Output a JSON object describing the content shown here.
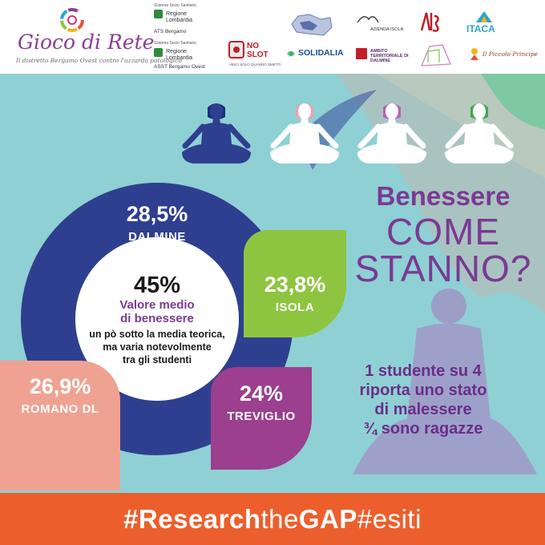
{
  "header": {
    "logo_title": "Gioco di Rete",
    "logo_subtitle": "Il distretto Bergamo Ovest contro l'azzardo patologico",
    "partners": {
      "ats_caption": "Sistema Socio Sanitario",
      "ats_name": "Regione Lombardia",
      "ats_sub": "ATS Bergamo",
      "asst_caption": "Sistema Socio Sanitario",
      "asst_name": "Regione Lombardia",
      "asst_sub": "ASST Bergamo Ovest",
      "noslot_label": "NO SLOT",
      "noslot_tagline": "VINCI SOLO QUANDO SMETTI",
      "solidalia_label": "SOLIDALIA",
      "azienda_isola": "AZIENDA ISOLA",
      "ambito_dalmine": "AMBITO TERRITORIALE DI DALMINE",
      "itaca": "ITACA",
      "piccolo_principe": "Il Piccolo Principe"
    }
  },
  "main": {
    "title_line1": "Benessere",
    "title_line2": "COME",
    "title_line3": "STANNO?",
    "center_pct": "45%",
    "center_label_1": "Valore medio",
    "center_label_2": "di benessere",
    "center_note_1": "un pò sotto la media teorica,",
    "center_note_2": "ma varia notevolmente",
    "center_note_3": "tra gli studenti",
    "stats": {
      "dalmine": {
        "pct": "28,5%",
        "name": "DALMINE",
        "color": "#2f3f8f"
      },
      "isola": {
        "pct": "23,8%",
        "name": "ISOLA",
        "color": "#8dc540"
      },
      "romano": {
        "pct": "26,9%",
        "name": "ROMANO DL",
        "color": "#f0a292"
      },
      "treviglio": {
        "pct": "24%",
        "name": "TREVIGLIO",
        "color": "#9b3f8e"
      }
    },
    "info_1": "1 studente su 4",
    "info_2": "riporta uno stato",
    "info_3": "di malessere",
    "info_4": "¾ sono ragazze"
  },
  "footer": {
    "part1": "#Research",
    "part2": "the",
    "part3": "GAP",
    "part4": "#esiti"
  },
  "colors": {
    "teal_bg": "#8fd0d4",
    "purple": "#7a3a93",
    "orange": "#ec5f2c",
    "navy": "#2f3f8f"
  }
}
